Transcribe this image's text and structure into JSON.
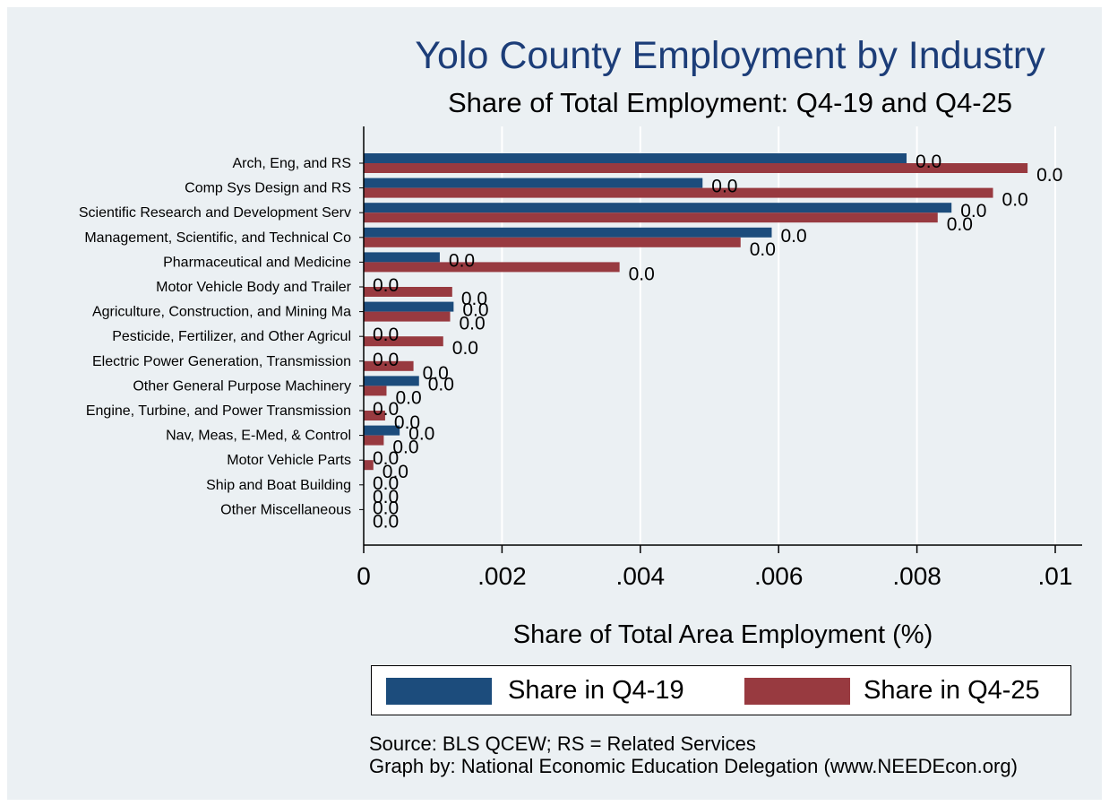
{
  "colors": {
    "series1": "#1c4c7c",
    "series2": "#983a40",
    "background": "#ebf0f3",
    "grid": "#ffffff"
  },
  "chart_data": {
    "type": "bar",
    "orientation": "horizontal",
    "title": "Yolo County Employment by Industry",
    "subtitle": "Share of Total Employment: Q4-19 and Q4-25",
    "xlabel": "Share of Total Area Employment (%)",
    "xlim": [
      0,
      0.0104
    ],
    "xticks": [
      0,
      0.002,
      0.004,
      0.006,
      0.008,
      0.01
    ],
    "xtick_labels": [
      "0",
      ".002",
      ".004",
      ".006",
      ".008",
      ".01"
    ],
    "categories": [
      "Arch, Eng, and RS",
      "Comp Sys Design and RS",
      "Scientific Research and Development Serv",
      "Management, Scientific, and Technical Co",
      "Pharmaceutical and Medicine",
      "Motor Vehicle Body and Trailer",
      "Agriculture, Construction, and Mining Ma",
      "Pesticide, Fertilizer, and Other Agricul",
      "Electric Power Generation, Transmission ",
      "Other General Purpose Machinery",
      "Engine, Turbine, and Power Transmission ",
      "Nav, Meas, E-Med, & Control",
      "Motor Vehicle Parts",
      "Ship and Boat Building",
      "Other Miscellaneous"
    ],
    "series": [
      {
        "name": "Share in Q4-19",
        "values": [
          0.00785,
          0.0049,
          0.0085,
          0.0059,
          0.0011,
          0,
          0.0013,
          0,
          0,
          0.0008,
          0,
          0.00052,
          0,
          0,
          0
        ]
      },
      {
        "name": "Share in Q4-25",
        "values": [
          0.0096,
          0.0091,
          0.0083,
          0.00545,
          0.0037,
          0.00128,
          0.00125,
          0.00115,
          0.00072,
          0.00033,
          0.00031,
          0.00029,
          0.00014,
          0,
          0
        ]
      }
    ],
    "data_label_text": "0.0",
    "legend": {
      "position": "bottom",
      "items": [
        "Share in Q4-19",
        "Share in Q4-25"
      ]
    },
    "grid": "vertical",
    "notes": [
      "Source: BLS QCEW; RS = Related Services",
      "Graph by: National Economic Education Delegation (www.NEEDEcon.org)"
    ]
  }
}
